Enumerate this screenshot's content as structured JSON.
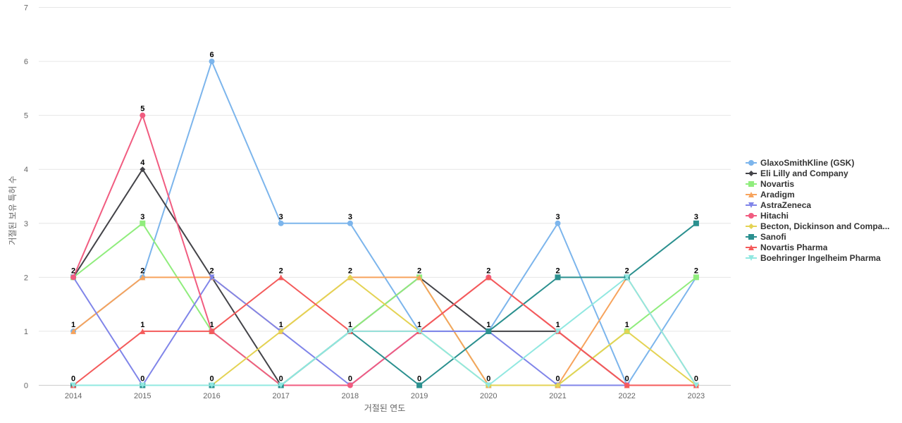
{
  "chart_data": {
    "type": "line",
    "xlabel": "거절된 연도",
    "ylabel": "거절된 보유 특허 수",
    "ylim": [
      0,
      7
    ],
    "yticks": [
      0,
      1,
      2,
      3,
      4,
      5,
      6,
      7
    ],
    "x": [
      "2014",
      "2015",
      "2016",
      "2017",
      "2018",
      "2019",
      "2020",
      "2021",
      "2022",
      "2023"
    ],
    "grid": true,
    "legend_position": "right",
    "series": [
      {
        "name": "GlaxoSmithKline (GSK)",
        "color": "#7cb5ec",
        "marker": "circle",
        "values": [
          1,
          2,
          6,
          3,
          3,
          1,
          1,
          3,
          0,
          2
        ]
      },
      {
        "name": "Eli Lilly and Company",
        "color": "#434348",
        "marker": "diamond",
        "values": [
          2,
          4,
          2,
          0,
          1,
          2,
          1,
          1,
          0,
          0
        ]
      },
      {
        "name": "Novartis",
        "color": "#90ed7d",
        "marker": "square",
        "values": [
          2,
          3,
          1,
          0,
          1,
          2,
          0,
          0,
          1,
          2
        ]
      },
      {
        "name": "Aradigm",
        "color": "#f7a35c",
        "marker": "triangle",
        "values": [
          1,
          2,
          2,
          1,
          2,
          2,
          0,
          0,
          2,
          0
        ]
      },
      {
        "name": "AstraZeneca",
        "color": "#8085e9",
        "marker": "triangle-down",
        "values": [
          2,
          0,
          2,
          1,
          0,
          1,
          1,
          0,
          0,
          0
        ]
      },
      {
        "name": "Hitachi",
        "color": "#f15c80",
        "marker": "circle",
        "values": [
          2,
          5,
          1,
          0,
          0,
          1,
          2,
          1,
          0,
          0
        ]
      },
      {
        "name": "Becton, Dickinson and Compa...",
        "color": "#e4d354",
        "marker": "diamond",
        "values": [
          0,
          0,
          0,
          1,
          2,
          1,
          0,
          0,
          1,
          0
        ]
      },
      {
        "name": "Sanofi",
        "color": "#2b908f",
        "marker": "square",
        "values": [
          0,
          0,
          0,
          0,
          1,
          0,
          1,
          2,
          2,
          3
        ]
      },
      {
        "name": "Novartis Pharma",
        "color": "#f45b5b",
        "marker": "triangle",
        "values": [
          0,
          1,
          1,
          2,
          1,
          1,
          2,
          1,
          0,
          0
        ]
      },
      {
        "name": "Boehringer Ingelheim Pharma",
        "color": "#91e8e1",
        "marker": "triangle-down",
        "values": [
          0,
          0,
          0,
          0,
          1,
          1,
          0,
          1,
          2,
          0
        ]
      }
    ],
    "data_labels": [
      {
        "x": "2014",
        "text": "2"
      },
      {
        "x": "2014",
        "text": "1"
      },
      {
        "x": "2014",
        "text": "0"
      },
      {
        "x": "2015",
        "text": "5"
      },
      {
        "x": "2015",
        "text": "4"
      },
      {
        "x": "2015",
        "text": "3"
      },
      {
        "x": "2015",
        "text": "2"
      },
      {
        "x": "2015",
        "text": "1"
      },
      {
        "x": "2015",
        "text": "0"
      },
      {
        "x": "2016",
        "text": "6"
      },
      {
        "x": "2016",
        "text": "2"
      },
      {
        "x": "2016",
        "text": "1"
      },
      {
        "x": "2016",
        "text": "0"
      },
      {
        "x": "2017",
        "text": "3"
      },
      {
        "x": "2017",
        "text": "2"
      },
      {
        "x": "2017",
        "text": "1"
      },
      {
        "x": "2017",
        "text": "0"
      },
      {
        "x": "2018",
        "text": "3"
      },
      {
        "x": "2018",
        "text": "2"
      },
      {
        "x": "2018",
        "text": "1"
      },
      {
        "x": "2018",
        "text": "0"
      },
      {
        "x": "2019",
        "text": "2"
      },
      {
        "x": "2019",
        "text": "1"
      },
      {
        "x": "2019",
        "text": "0"
      },
      {
        "x": "2020",
        "text": "2"
      },
      {
        "x": "2020",
        "text": "1"
      },
      {
        "x": "2020",
        "text": "0"
      },
      {
        "x": "2021",
        "text": "3"
      },
      {
        "x": "2021",
        "text": "2"
      },
      {
        "x": "2021",
        "text": "1"
      },
      {
        "x": "2021",
        "text": "0"
      },
      {
        "x": "2022",
        "text": "2"
      },
      {
        "x": "2022",
        "text": "1"
      },
      {
        "x": "2022",
        "text": "0"
      },
      {
        "x": "2023",
        "text": "3"
      },
      {
        "x": "2023",
        "text": "2"
      },
      {
        "x": "2023",
        "text": "0"
      }
    ]
  }
}
